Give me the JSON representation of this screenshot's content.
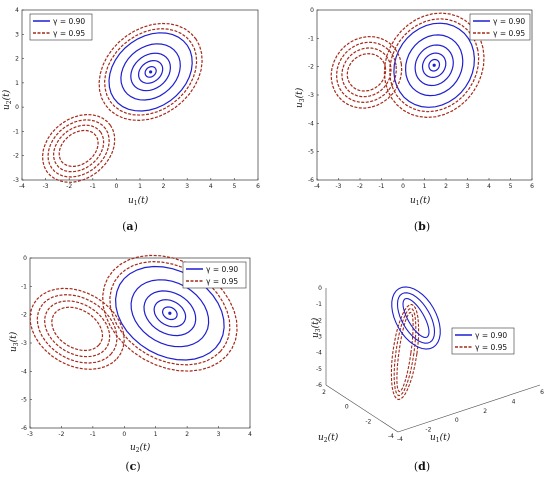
{
  "legend": {
    "series": [
      {
        "name": "γ = 0.90",
        "color": "#1f1fd0"
      },
      {
        "name": "γ = 0.95",
        "color": "#a52a1a"
      }
    ]
  },
  "chart_data": [
    {
      "panel": "a",
      "caption": "(a)",
      "type": "line",
      "xlabel": "u",
      "xsub": "1",
      "ylabel": "u",
      "ysub": "2",
      "xlim": [
        -4,
        6
      ],
      "ylim": [
        -3,
        4
      ],
      "xticks": [
        "-4",
        "-3",
        "-2",
        "-1",
        "0",
        "1",
        "2",
        "3",
        "4",
        "5",
        "6"
      ],
      "yticks": [
        "-3",
        "-2",
        "-1",
        "0",
        "1",
        "2",
        "3",
        "4"
      ],
      "legend_position": "top-left",
      "attractor_centers": [
        [
          1.45,
          1.45
        ],
        [
          -1.6,
          -1.7
        ]
      ]
    },
    {
      "panel": "b",
      "caption": "(b)",
      "type": "line",
      "xlabel": "u",
      "xsub": "1",
      "ylabel": "u",
      "ysub": "3",
      "xlim": [
        -4,
        6
      ],
      "ylim": [
        -6,
        0
      ],
      "xticks": [
        "-4",
        "-3",
        "-2",
        "-1",
        "0",
        "1",
        "2",
        "3",
        "4",
        "5",
        "6"
      ],
      "yticks": [
        "-6",
        "-5",
        "-4",
        "-3",
        "-2",
        "-1",
        "0"
      ],
      "legend_position": "top-right",
      "attractor_centers": [
        [
          1.45,
          -1.95
        ],
        [
          -1.7,
          -2.2
        ]
      ]
    },
    {
      "panel": "c",
      "caption": "(c)",
      "type": "line",
      "xlabel": "u",
      "xsub": "2",
      "ylabel": "u",
      "ysub": "3",
      "xlim": [
        -3,
        4
      ],
      "ylim": [
        -6,
        0
      ],
      "xticks": [
        "-3",
        "-2",
        "-1",
        "0",
        "1",
        "2",
        "3",
        "4"
      ],
      "yticks": [
        "-6",
        "-5",
        "-4",
        "-3",
        "-2",
        "-1",
        "0"
      ],
      "legend_position": "top-right",
      "attractor_centers": [
        [
          1.45,
          -1.95
        ],
        [
          -1.5,
          -2.5
        ]
      ]
    },
    {
      "panel": "d",
      "caption": "(d)",
      "type": "line",
      "projection": "3d",
      "xlabel": "u",
      "xsub": "1",
      "ylabel": "u",
      "ysub": "2",
      "zlabel": "u",
      "zsub": "3",
      "xticks": [
        "-4",
        "-2",
        "0",
        "2",
        "4",
        "6"
      ],
      "yticks": [
        "-4",
        "-2",
        "0",
        "2"
      ],
      "zticks": [
        "-6",
        "-5",
        "-4",
        "-3",
        "-2",
        "-1",
        "0"
      ],
      "legend_position": "center-right"
    }
  ]
}
